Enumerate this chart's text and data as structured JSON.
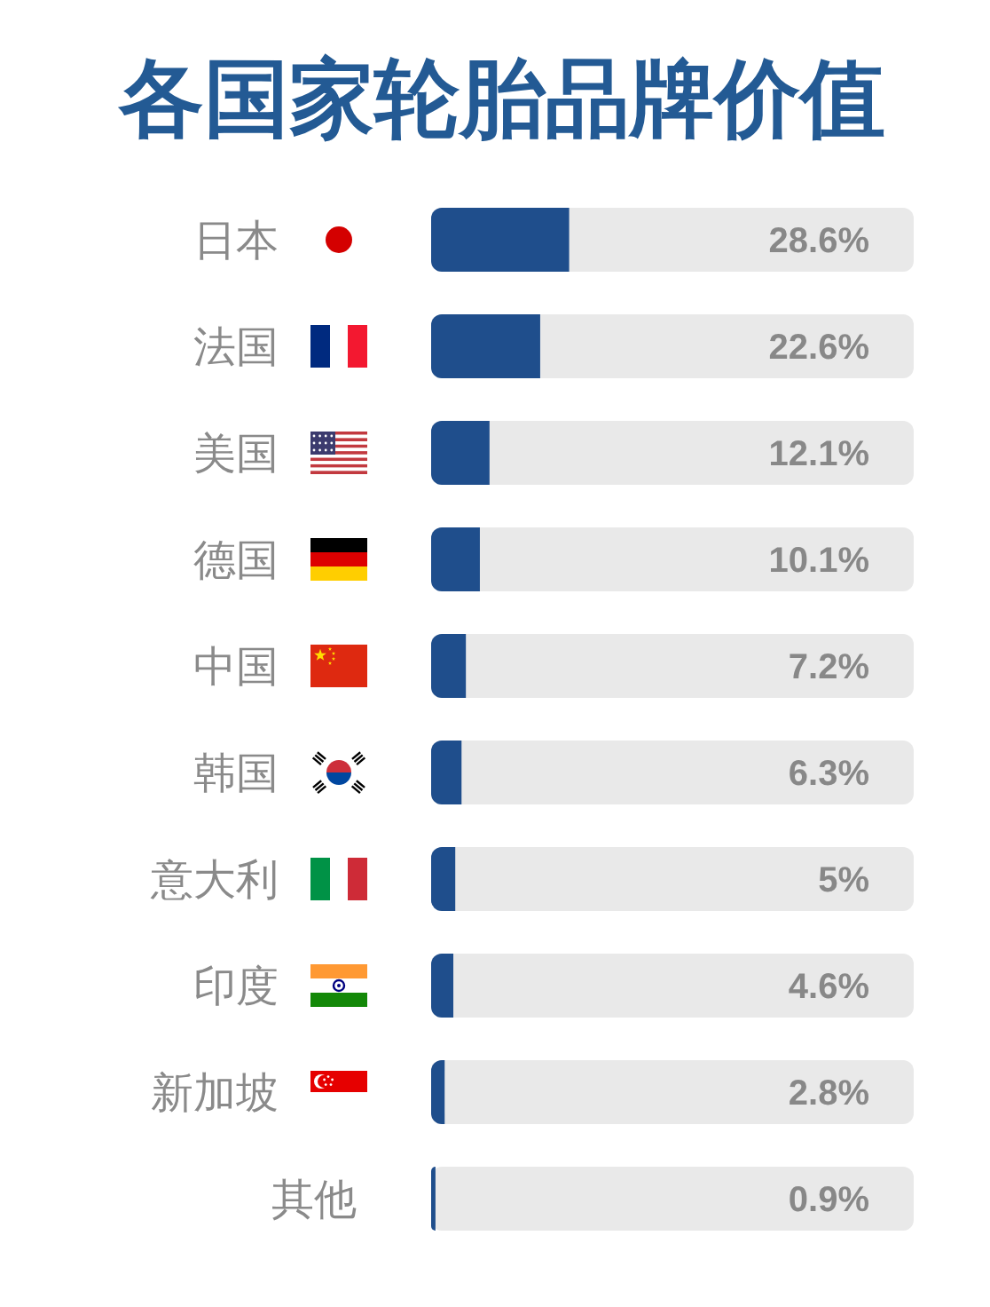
{
  "chart_data": {
    "type": "bar",
    "orientation": "horizontal",
    "title": "各国家轮胎品牌价值",
    "categories": [
      "日本",
      "法国",
      "美国",
      "德国",
      "中国",
      "韩国",
      "意大利",
      "印度",
      "新加坡",
      "其他"
    ],
    "values": [
      28.6,
      22.6,
      12.1,
      10.1,
      7.2,
      6.3,
      5,
      4.6,
      2.8,
      0.9
    ],
    "value_labels": [
      "28.6%",
      "22.6%",
      "12.1%",
      "10.1%",
      "7.2%",
      "6.3%",
      "5%",
      "4.6%",
      "2.8%",
      "0.9%"
    ],
    "color": "#1f4e8c",
    "xlim": [
      0,
      100
    ],
    "tick_labels": "y"
  }
}
